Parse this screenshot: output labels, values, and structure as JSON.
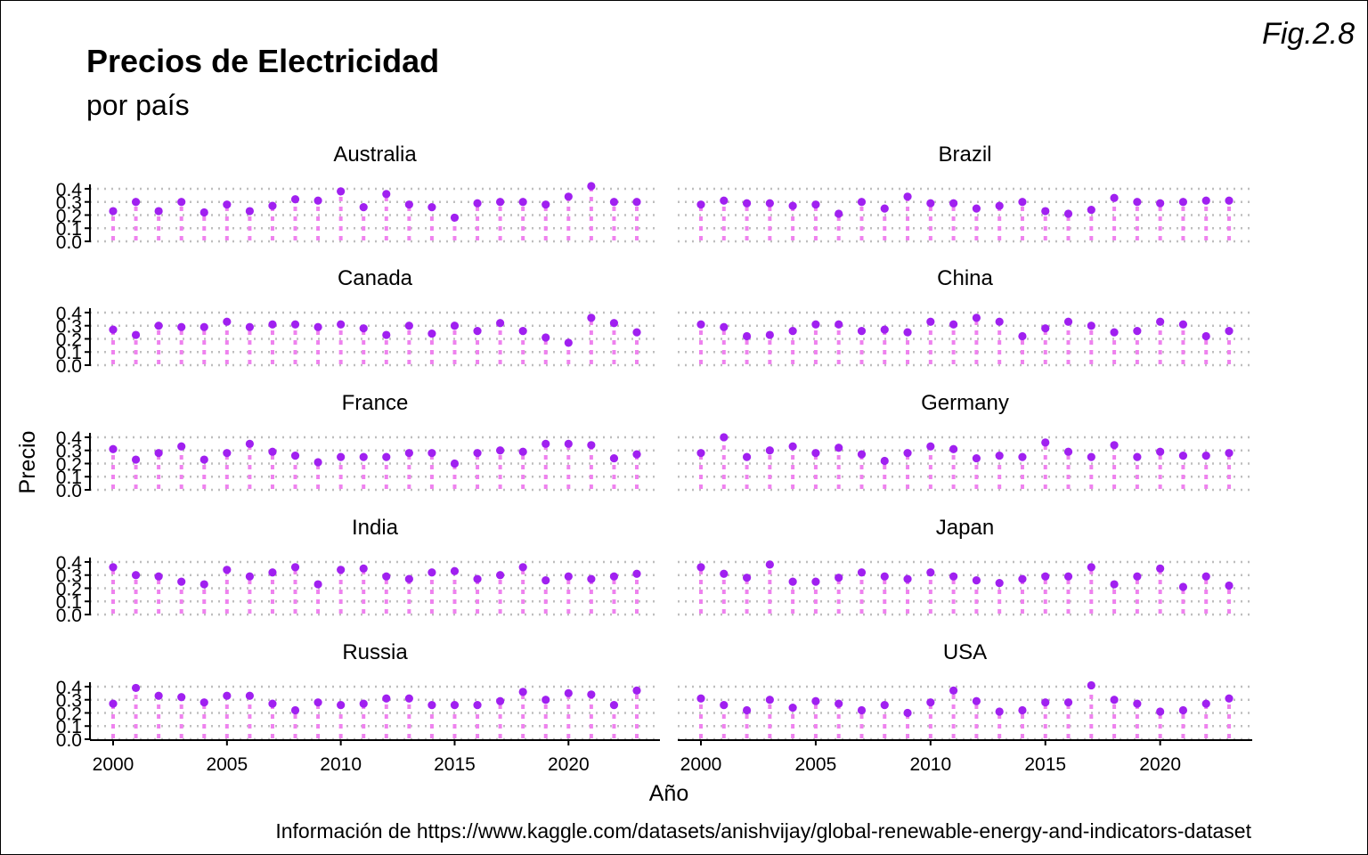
{
  "figure_label": "Fig.2.8",
  "colors": {
    "point": "#a020f0",
    "stem": "#ee82ee",
    "grid": "#bebebe",
    "axis": "#000000"
  },
  "chart_data": {
    "type": "lollipop",
    "facet": "small-multiples",
    "title": "Precios de Electricidad",
    "subtitle": "por país",
    "xlabel": "Año",
    "ylabel": "Precio",
    "caption": "Información de https://www.kaggle.com/datasets/anishvijay/global-renewable-energy-and-indicators-dataset",
    "x_ticks": [
      2000,
      2005,
      2010,
      2015,
      2020
    ],
    "y_ticks": [
      0.0,
      0.1,
      0.2,
      0.3,
      0.4
    ],
    "y_tick_labels": [
      "0.0",
      "0.1",
      "0.2",
      "0.3",
      "0.4"
    ],
    "xlim": [
      1999,
      2024
    ],
    "ylim": [
      0,
      0.42
    ],
    "grid": "horizontal dotted",
    "years": [
      2000,
      2001,
      2002,
      2003,
      2004,
      2005,
      2006,
      2007,
      2008,
      2009,
      2010,
      2011,
      2012,
      2013,
      2014,
      2015,
      2016,
      2017,
      2018,
      2019,
      2020,
      2021,
      2022,
      2023
    ],
    "series": [
      {
        "name": "Australia",
        "values": [
          0.23,
          0.3,
          0.23,
          0.3,
          0.22,
          0.28,
          0.23,
          0.27,
          0.32,
          0.31,
          0.38,
          0.26,
          0.36,
          0.28,
          0.26,
          0.18,
          0.29,
          0.3,
          0.3,
          0.28,
          0.34,
          0.42,
          0.3,
          0.3
        ]
      },
      {
        "name": "Brazil",
        "values": [
          0.28,
          0.31,
          0.29,
          0.29,
          0.27,
          0.28,
          0.21,
          0.3,
          0.25,
          0.34,
          0.29,
          0.29,
          0.25,
          0.27,
          0.3,
          0.23,
          0.21,
          0.24,
          0.33,
          0.3,
          0.29,
          0.3,
          0.31,
          0.31
        ]
      },
      {
        "name": "Canada",
        "values": [
          0.27,
          0.23,
          0.3,
          0.29,
          0.29,
          0.33,
          0.29,
          0.31,
          0.31,
          0.29,
          0.31,
          0.28,
          0.23,
          0.3,
          0.24,
          0.3,
          0.26,
          0.32,
          0.26,
          0.21,
          0.17,
          0.36,
          0.32,
          0.25
        ]
      },
      {
        "name": "China",
        "values": [
          0.31,
          0.29,
          0.22,
          0.23,
          0.26,
          0.31,
          0.31,
          0.26,
          0.27,
          0.25,
          0.33,
          0.31,
          0.36,
          0.33,
          0.22,
          0.28,
          0.33,
          0.3,
          0.25,
          0.26,
          0.33,
          0.31,
          0.22,
          0.26
        ]
      },
      {
        "name": "France",
        "values": [
          0.31,
          0.23,
          0.28,
          0.33,
          0.23,
          0.28,
          0.35,
          0.29,
          0.26,
          0.21,
          0.25,
          0.25,
          0.25,
          0.28,
          0.28,
          0.2,
          0.28,
          0.3,
          0.29,
          0.35,
          0.35,
          0.34,
          0.24,
          0.27
        ]
      },
      {
        "name": "Germany",
        "values": [
          0.28,
          0.4,
          0.25,
          0.3,
          0.33,
          0.28,
          0.32,
          0.27,
          0.22,
          0.28,
          0.33,
          0.31,
          0.24,
          0.26,
          0.25,
          0.36,
          0.29,
          0.25,
          0.34,
          0.25,
          0.29,
          0.26,
          0.26,
          0.28
        ]
      },
      {
        "name": "India",
        "values": [
          0.36,
          0.3,
          0.29,
          0.25,
          0.23,
          0.34,
          0.29,
          0.32,
          0.36,
          0.23,
          0.34,
          0.35,
          0.29,
          0.27,
          0.32,
          0.33,
          0.27,
          0.3,
          0.36,
          0.26,
          0.29,
          0.27,
          0.29,
          0.31
        ]
      },
      {
        "name": "Japan",
        "values": [
          0.36,
          0.31,
          0.28,
          0.38,
          0.25,
          0.25,
          0.28,
          0.32,
          0.29,
          0.27,
          0.32,
          0.29,
          0.26,
          0.24,
          0.27,
          0.29,
          0.29,
          0.36,
          0.23,
          0.29,
          0.35,
          0.21,
          0.29,
          0.22
        ]
      },
      {
        "name": "Russia",
        "values": [
          0.27,
          0.39,
          0.33,
          0.32,
          0.28,
          0.33,
          0.33,
          0.27,
          0.22,
          0.28,
          0.26,
          0.27,
          0.31,
          0.31,
          0.26,
          0.26,
          0.26,
          0.29,
          0.36,
          0.3,
          0.35,
          0.34,
          0.26,
          0.37
        ]
      },
      {
        "name": "USA",
        "values": [
          0.31,
          0.26,
          0.22,
          0.3,
          0.24,
          0.29,
          0.27,
          0.22,
          0.26,
          0.2,
          0.28,
          0.37,
          0.29,
          0.21,
          0.22,
          0.28,
          0.28,
          0.41,
          0.3,
          0.27,
          0.21,
          0.22,
          0.27,
          0.31
        ]
      }
    ]
  }
}
